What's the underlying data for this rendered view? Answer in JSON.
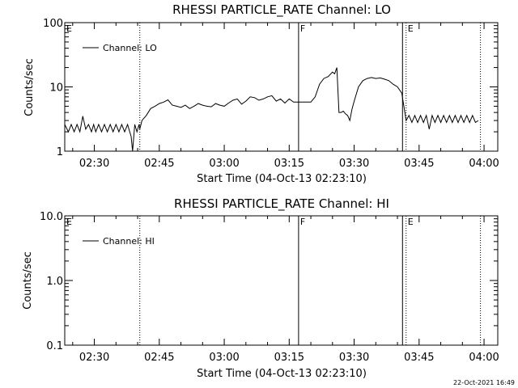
{
  "footer": {
    "timestamp": "22-Oct-2021 16:49"
  },
  "chart_data": [
    {
      "type": "line",
      "title": "RHESSI PARTICLE_RATE Channel: LO",
      "xlabel": "Start Time (04-Oct-13 02:23:10)",
      "ylabel": "Counts/sec",
      "yscale": "log",
      "ylim": [
        1,
        100
      ],
      "xlim": [
        "02:23:10",
        "04:03:10"
      ],
      "xticks": [
        "02:30",
        "02:45",
        "03:00",
        "03:15",
        "03:30",
        "03:45",
        "04:00"
      ],
      "yticks": [
        "1",
        "10",
        "100"
      ],
      "legend": {
        "label": "Channel: LO",
        "position": "top-left"
      },
      "markers": [
        {
          "label": "E",
          "time": "02:23:10",
          "style": "solid"
        },
        {
          "label": "",
          "time": "02:40:30",
          "style": "dotted"
        },
        {
          "label": "F",
          "time": "03:17:10",
          "style": "solid"
        },
        {
          "label": "",
          "time": "03:41:10",
          "style": "solid"
        },
        {
          "label": "E",
          "time": "03:42:00",
          "style": "dotted"
        },
        {
          "label": "",
          "time": "03:59:10",
          "style": "dotted"
        }
      ],
      "series": [
        {
          "name": "Channel: LO",
          "x": [
            "02:23:10",
            "02:24:00",
            "02:24:40",
            "02:25:20",
            "02:26:00",
            "02:26:40",
            "02:27:20",
            "02:28:00",
            "02:28:40",
            "02:29:20",
            "02:29:50",
            "02:30:20",
            "02:31:00",
            "02:31:40",
            "02:32:20",
            "02:33:00",
            "02:33:40",
            "02:34:20",
            "02:35:00",
            "02:35:40",
            "02:36:20",
            "02:37:00",
            "02:37:40",
            "02:38:10",
            "02:38:30",
            "02:38:50",
            "02:39:20",
            "02:39:50",
            "02:40:20",
            "02:40:30",
            "02:41:00",
            "02:42:00",
            "02:43:00",
            "02:44:00",
            "02:45:00",
            "02:46:00",
            "02:47:00",
            "02:48:00",
            "02:49:00",
            "02:50:00",
            "02:51:00",
            "02:52:00",
            "02:53:00",
            "02:54:00",
            "02:55:00",
            "02:56:00",
            "02:57:00",
            "02:58:00",
            "02:59:00",
            "03:00:00",
            "03:01:00",
            "03:02:00",
            "03:03:00",
            "03:04:00",
            "03:05:00",
            "03:06:00",
            "03:07:00",
            "03:08:00",
            "03:09:00",
            "03:10:00",
            "03:11:00",
            "03:12:00",
            "03:13:00",
            "03:14:00",
            "03:15:00",
            "03:16:00",
            "03:17:00",
            "03:18:00",
            "03:19:00",
            "03:20:00",
            "03:21:00",
            "03:22:00",
            "03:23:00",
            "03:24:00",
            "03:25:00",
            "03:25:30",
            "03:26:00",
            "03:26:30",
            "03:27:00",
            "03:27:30",
            "03:28:00",
            "03:28:30",
            "03:29:00",
            "03:29:30",
            "03:30:00",
            "03:31:00",
            "03:32:00",
            "03:33:00",
            "03:34:00",
            "03:35:00",
            "03:36:00",
            "03:37:00",
            "03:38:00",
            "03:39:00",
            "03:40:00",
            "03:41:00",
            "03:42:00",
            "03:42:40",
            "03:43:20",
            "03:44:00",
            "03:44:40",
            "03:45:20",
            "03:46:00",
            "03:46:40",
            "03:47:20",
            "03:48:00",
            "03:48:40",
            "03:49:20",
            "03:50:00",
            "03:50:40",
            "03:51:20",
            "03:52:00",
            "03:52:40",
            "03:53:20",
            "03:54:00",
            "03:54:40",
            "03:55:20",
            "03:56:00",
            "03:56:40",
            "03:57:20",
            "03:58:00",
            "03:58:40"
          ],
          "values": [
            2.6,
            2.0,
            2.6,
            2.0,
            2.6,
            2.0,
            3.5,
            2.2,
            2.6,
            2.0,
            2.6,
            2.0,
            2.6,
            2.0,
            2.6,
            2.0,
            2.6,
            2.0,
            2.6,
            2.0,
            2.6,
            2.0,
            2.6,
            2.0,
            1.7,
            1.0,
            2.6,
            2.0,
            2.6,
            2.2,
            3.0,
            3.6,
            4.6,
            5.0,
            5.5,
            5.8,
            6.3,
            5.2,
            5.0,
            4.8,
            5.2,
            4.6,
            5.0,
            5.5,
            5.2,
            5.0,
            4.9,
            5.5,
            5.2,
            5.0,
            5.6,
            6.2,
            6.5,
            5.4,
            6.0,
            7.0,
            6.8,
            6.2,
            6.5,
            7.0,
            7.3,
            6.0,
            6.5,
            5.6,
            6.5,
            5.8,
            5.8,
            5.8,
            5.8,
            5.8,
            7.0,
            11.0,
            13.5,
            14.5,
            17.0,
            16.0,
            20.0,
            4.0,
            4.0,
            4.2,
            3.8,
            3.6,
            3.0,
            4.5,
            6.0,
            10.0,
            12.5,
            13.5,
            14.0,
            13.5,
            13.8,
            13.2,
            12.5,
            11.0,
            10.0,
            8.0,
            3.0,
            3.6,
            2.8,
            3.6,
            2.8,
            3.6,
            2.8,
            3.6,
            2.2,
            3.6,
            2.8,
            3.6,
            2.8,
            3.6,
            2.8,
            3.6,
            2.8,
            3.6,
            2.8,
            3.6,
            2.8,
            3.6,
            2.8,
            3.6,
            2.8,
            3.0
          ]
        }
      ]
    },
    {
      "type": "line",
      "title": "RHESSI PARTICLE_RATE Channel: HI",
      "xlabel": "Start Time (04-Oct-13 02:23:10)",
      "ylabel": "Counts/sec",
      "yscale": "log",
      "ylim": [
        0.1,
        10.0
      ],
      "xlim": [
        "02:23:10",
        "04:03:10"
      ],
      "xticks": [
        "02:30",
        "02:45",
        "03:00",
        "03:15",
        "03:30",
        "03:45",
        "04:00"
      ],
      "yticks": [
        "0.1",
        "1.0",
        "10.0"
      ],
      "legend": {
        "label": "Channel: HI",
        "position": "top-left"
      },
      "markers": [
        {
          "label": "E",
          "time": "02:23:10",
          "style": "solid"
        },
        {
          "label": "",
          "time": "02:40:30",
          "style": "dotted"
        },
        {
          "label": "F",
          "time": "03:17:10",
          "style": "solid"
        },
        {
          "label": "",
          "time": "03:41:10",
          "style": "solid"
        },
        {
          "label": "E",
          "time": "03:42:00",
          "style": "dotted"
        },
        {
          "label": "",
          "time": "03:59:10",
          "style": "dotted"
        }
      ],
      "series": [
        {
          "name": "Channel: HI",
          "x": [],
          "values": []
        }
      ]
    }
  ]
}
